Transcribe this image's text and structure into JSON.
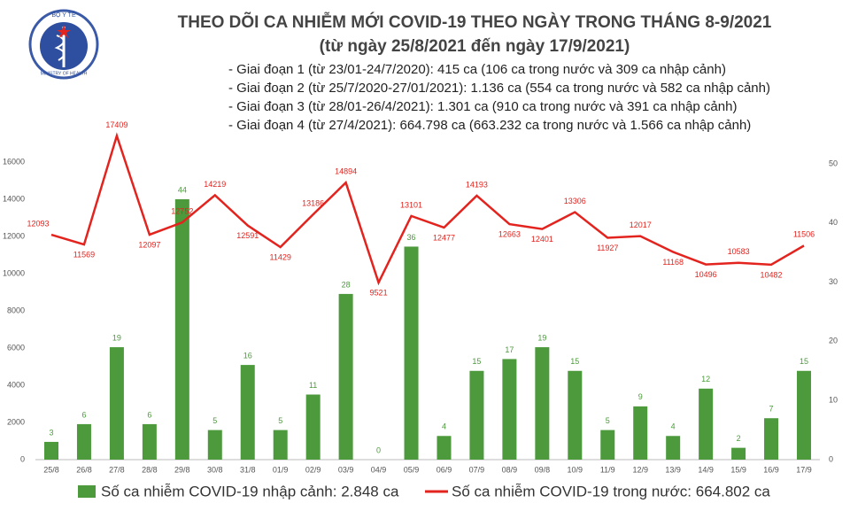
{
  "chart_data": {
    "type": "bar",
    "logo_text": [
      "BỘ Y TẾ",
      "MINISTRY OF HEALTH"
    ],
    "title": "THEO DÕI CA NHIỄM MỚI COVID-19 THEO NGÀY TRONG THÁNG 8-9/2021",
    "subtitle": "(từ ngày 25/8/2021 đến ngày 17/9/2021)",
    "notes": [
      "- Giai đoạn 1 (từ 23/01-24/7/2020): 415 ca (106 ca trong nước và 309 ca nhập cảnh)",
      "- Giai đoạn 2 (từ 25/7/2020-27/01/2021): 1.136 ca (554 ca trong nước và 582 ca nhập cảnh)",
      "- Giai đoạn 3 (từ 28/01-26/4/2021): 1.301 ca (910 ca trong nước và 391 ca nhập cảnh)",
      "- Giai đoạn 4 (từ 27/4/2021): 664.798 ca (663.232 ca trong nước và 1.566 ca nhập cảnh)"
    ],
    "categories": [
      "25/8",
      "26/8",
      "27/8",
      "28/8",
      "29/8",
      "30/8",
      "31/8",
      "01/9",
      "02/9",
      "03/9",
      "04/9",
      "05/9",
      "06/9",
      "07/9",
      "08/9",
      "09/8",
      "10/9",
      "11/9",
      "12/9",
      "13/9",
      "14/9",
      "15/9",
      "16/9",
      "17/9"
    ],
    "series": [
      {
        "name": "Số ca nhiễm COVID-19 nhập cảnh: 2.848 ca",
        "type": "bar",
        "axis": "y2",
        "color": "#4c9a3c",
        "values": [
          3,
          6,
          19,
          6,
          44,
          5,
          16,
          5,
          11,
          28,
          0,
          36,
          4,
          15,
          17,
          19,
          15,
          5,
          9,
          4,
          12,
          2,
          7,
          15
        ]
      },
      {
        "name": "Số ca nhiễm COVID-19 trong nước: 664.802 ca",
        "type": "line",
        "color": "#e3231e",
        "values": [
          12093,
          11569,
          17409,
          12097,
          12752,
          14219,
          12591,
          11429,
          13186,
          14894,
          9521,
          13101,
          12477,
          14193,
          12663,
          12401,
          13306,
          11927,
          12017,
          11168,
          10496,
          10583,
          10482,
          11506
        ]
      }
    ],
    "ylim": [
      0,
      17500
    ],
    "yticks": [
      0,
      2000,
      4000,
      6000,
      8000,
      10000,
      12000,
      14000,
      16000
    ],
    "y2lim": [
      0,
      55
    ],
    "y2ticks": [
      0,
      10,
      20,
      30,
      40,
      50
    ]
  }
}
